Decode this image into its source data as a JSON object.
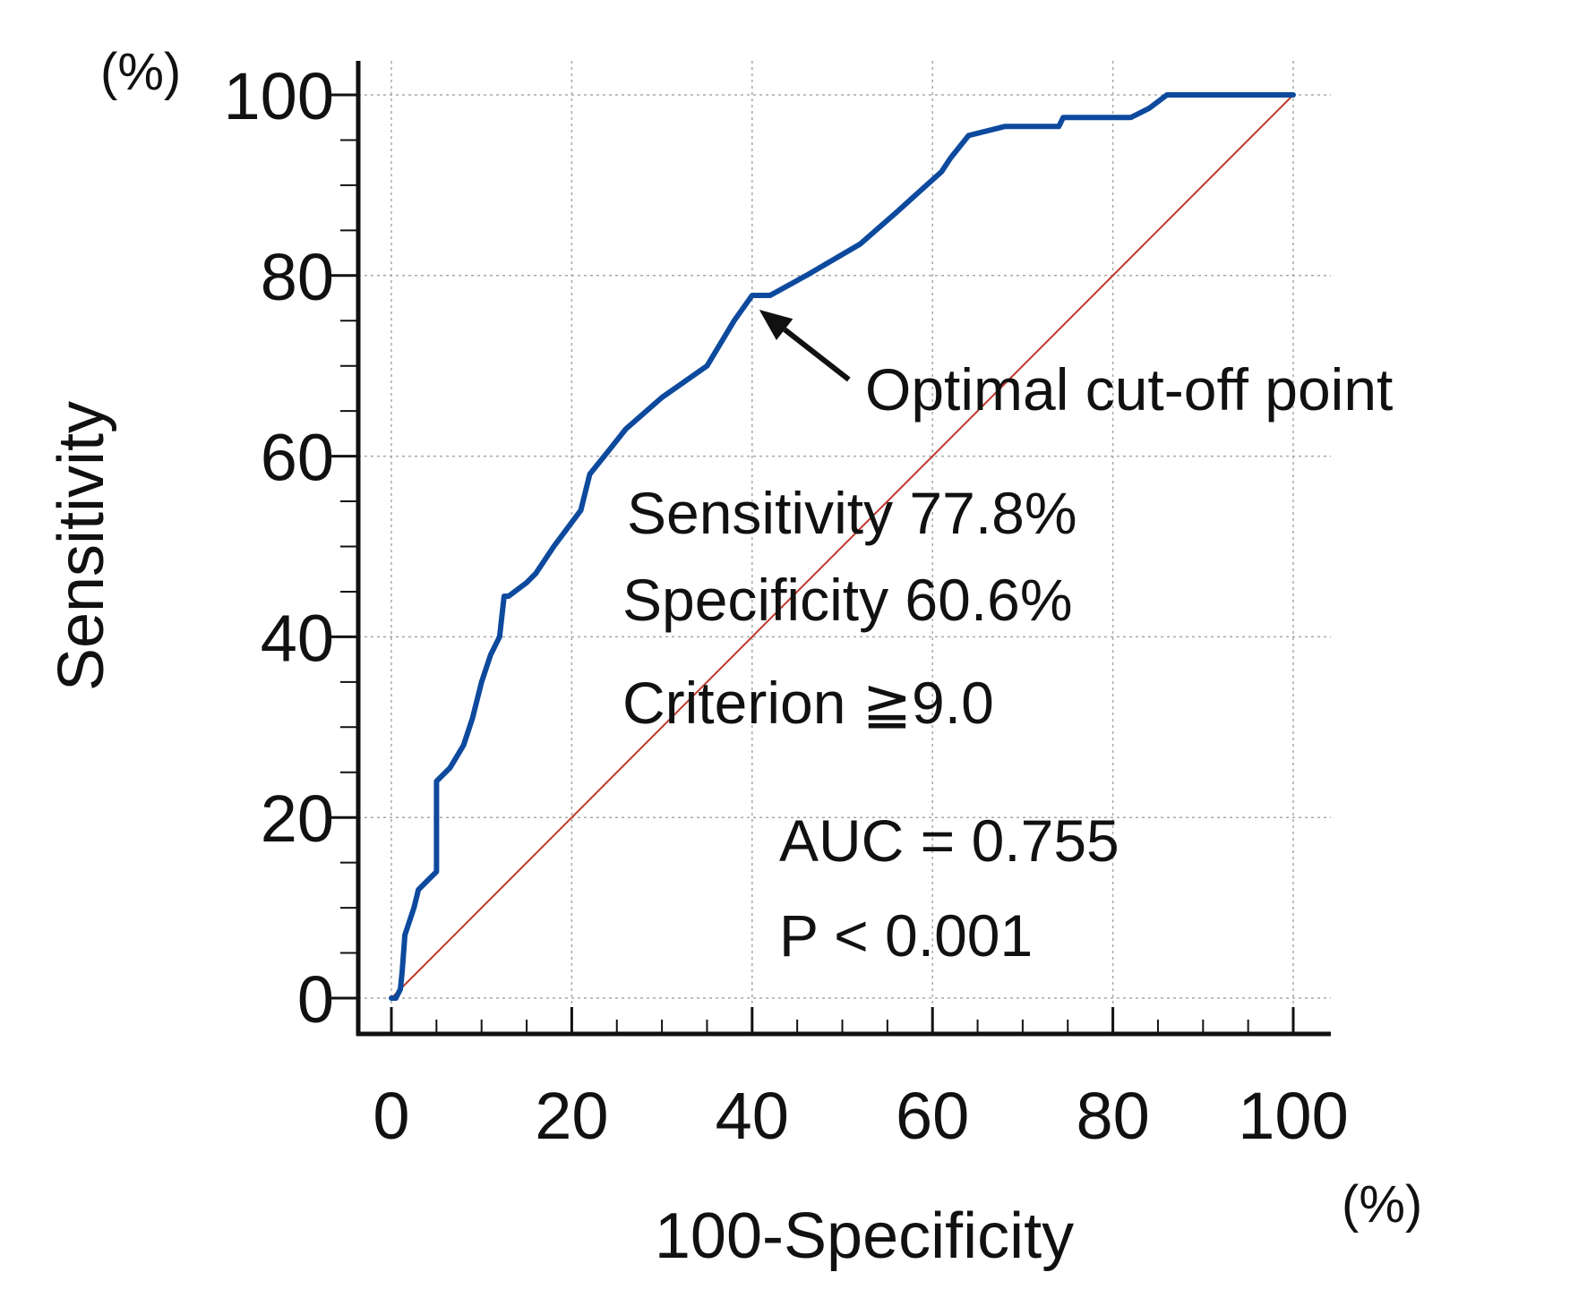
{
  "chart_data": {
    "type": "line",
    "title": "",
    "xlabel": "100-Specificity",
    "ylabel": "Sensitivity",
    "x_unit": "(%)",
    "y_unit": "(%)",
    "xlim": [
      0,
      100
    ],
    "ylim": [
      0,
      100
    ],
    "x_ticks": [
      "0",
      "20",
      "40",
      "60",
      "80",
      "100"
    ],
    "y_ticks": [
      "0",
      "20",
      "40",
      "60",
      "80",
      "100"
    ],
    "grid": true,
    "colors": {
      "roc": "#0d4a9e",
      "reference": "#c0392b",
      "axis": "#111111",
      "grid": "#a8a8a8",
      "arrow": "#111111"
    },
    "series": [
      {
        "name": "ROC curve",
        "x": [
          0,
          0.5,
          1,
          1.2,
          1.5,
          2.5,
          3,
          4,
          5,
          5,
          6.5,
          8,
          9,
          10,
          11,
          12,
          12.5,
          13,
          15,
          16,
          18,
          21,
          22,
          24,
          26,
          30,
          35,
          38,
          40,
          42,
          46,
          52,
          56,
          61,
          62,
          64,
          68,
          74,
          74.5,
          82,
          84,
          86,
          100
        ],
        "y": [
          0,
          0,
          1,
          3,
          7,
          10,
          12,
          13,
          14,
          24,
          25.5,
          28,
          31,
          35,
          38,
          40,
          44.5,
          44.5,
          46,
          47,
          50,
          54,
          58,
          60.5,
          63,
          66.5,
          70,
          75,
          77.8,
          77.8,
          80,
          83.5,
          87,
          91.5,
          93,
          95.5,
          96.5,
          96.5,
          97.5,
          97.5,
          98.5,
          100,
          100
        ]
      },
      {
        "name": "Reference line",
        "x": [
          0,
          100
        ],
        "y": [
          0,
          100
        ]
      }
    ],
    "optimal_point": {
      "x": 39.4,
      "y": 77.8
    },
    "annotations": {
      "arrow_label": "Optimal cut-off point",
      "sensitivity": "Sensitivity 77.8%",
      "specificity": "Specificity 60.6%",
      "criterion": "Criterion ≧9.0",
      "auc": "AUC = 0.755",
      "p_value": "P < 0.001"
    }
  }
}
